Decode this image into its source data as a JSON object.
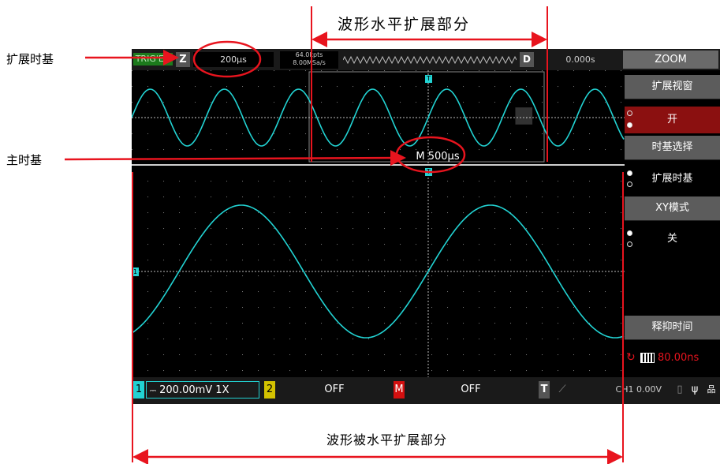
{
  "annotations": {
    "expanded_timebase": "扩展时基",
    "main_timebase": "主时基",
    "top_label": "波形水平扩展部分",
    "bottom_label": "波形被水平扩展部分"
  },
  "topbar": {
    "trig_status": "TRIG'ED",
    "z_label": "Z",
    "zoom_timebase": "200μs",
    "memory_depth": "64.0kpts",
    "sample_rate": "8.00MSa/s",
    "d_label": "D",
    "trigger_position": "0.000s",
    "zoom_title": "ZOOM"
  },
  "markers": {
    "trigger_marker": "T",
    "channel_marker": "1"
  },
  "main_timebase_value": "M 500μs",
  "menu": {
    "expand_window": {
      "label": "扩展视窗",
      "value": "开"
    },
    "timebase_select": {
      "label": "时基选择",
      "value": "扩展时基"
    },
    "xy_mode": {
      "label": "XY模式",
      "value": "关"
    },
    "holdoff": {
      "label": "释抑时间",
      "value": "80.00ns"
    }
  },
  "bottombar": {
    "ch1_num": "1",
    "ch1_scale": "200.00mV 1X",
    "ch2_num": "2",
    "ch2_status": "OFF",
    "math_label": "M",
    "math_status": "OFF",
    "trig_label": "T",
    "trig_info": "CH1 0.00V"
  },
  "colors": {
    "trace": "#22d3d3",
    "red_annotation": "#e8141e",
    "menu_active": "#8b1010"
  }
}
